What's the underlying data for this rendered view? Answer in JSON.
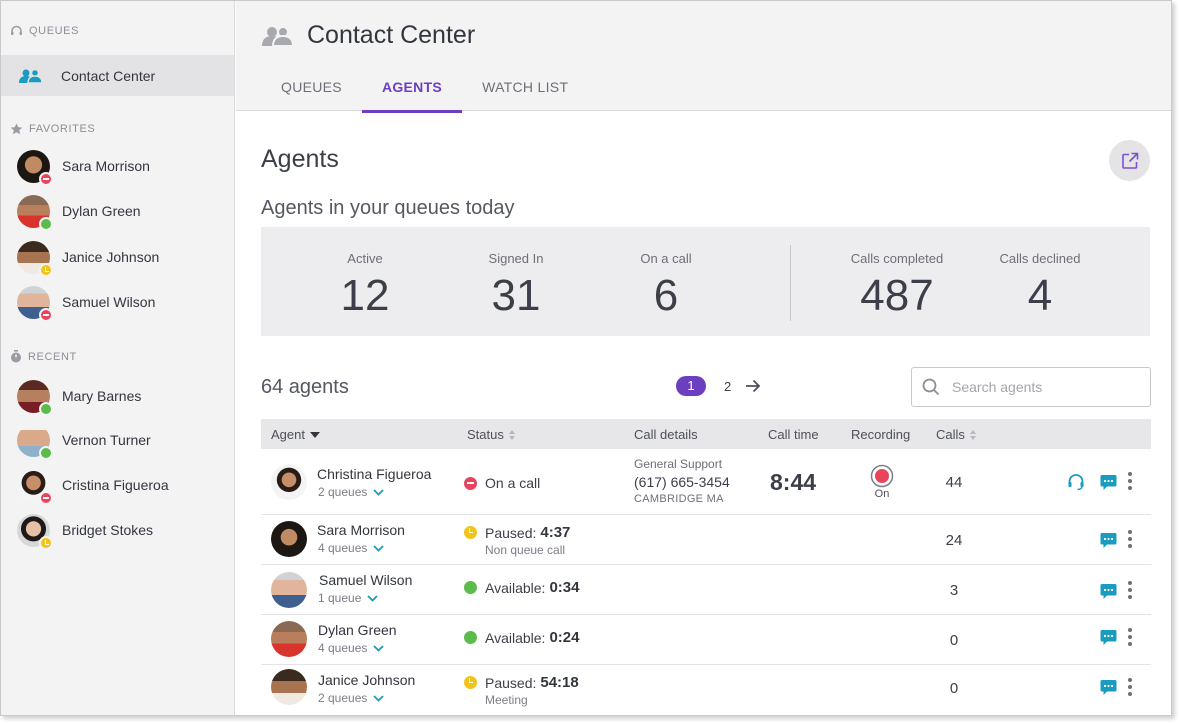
{
  "sidebar": {
    "queues_heading": "QUEUES",
    "queue_item": "Contact Center",
    "favorites_heading": "FAVORITES",
    "favorites": [
      {
        "name": "Sara Morrison",
        "status": "dnd"
      },
      {
        "name": "Dylan Green",
        "status": "available"
      },
      {
        "name": "Janice Johnson",
        "status": "away"
      },
      {
        "name": "Samuel Wilson",
        "status": "dnd"
      }
    ],
    "recent_heading": "RECENT",
    "recent": [
      {
        "name": "Mary Barnes",
        "status": "available"
      },
      {
        "name": "Vernon Turner",
        "status": "available"
      },
      {
        "name": "Cristina Figueroa",
        "status": "dnd"
      },
      {
        "name": "Bridget Stokes",
        "status": "away"
      }
    ]
  },
  "header": {
    "title": "Contact Center",
    "tabs": [
      "QUEUES",
      "AGENTS",
      "WATCH LIST"
    ],
    "active_tab": "AGENTS"
  },
  "page": {
    "heading": "Agents",
    "subheading": "Agents in your queues today"
  },
  "stats": [
    {
      "label": "Active",
      "value": "12"
    },
    {
      "label": "Signed In",
      "value": "31"
    },
    {
      "label": "On a call",
      "value": "6"
    },
    {
      "label": "Calls completed",
      "value": "487"
    },
    {
      "label": "Calls declined",
      "value": "4"
    }
  ],
  "list": {
    "count_text": "64 agents",
    "pages": [
      "1",
      "2"
    ],
    "current_page": "1",
    "search_placeholder": "Search agents"
  },
  "table": {
    "columns": [
      "Agent",
      "Status",
      "Call details",
      "Call time",
      "Recording",
      "Calls"
    ],
    "rows": [
      {
        "name": "Christina Figueroa",
        "queues": "2 queues",
        "status": "dnd",
        "status_label": "On a call",
        "status_time": "",
        "status_sub": "",
        "call_queue": "General Support",
        "call_phone": "(617) 665-3454",
        "call_location": "CAMBRIDGE MA",
        "call_time": "8:44",
        "recording": "On",
        "calls": "44"
      },
      {
        "name": "Sara Morrison",
        "queues": "4 queues",
        "status": "away",
        "status_label": "Paused:",
        "status_time": "4:37",
        "status_sub": "Non queue call",
        "calls": "24"
      },
      {
        "name": "Samuel Wilson",
        "queues": "1 queue",
        "status": "available",
        "status_label": "Available:",
        "status_time": "0:34",
        "status_sub": "",
        "calls": "3"
      },
      {
        "name": "Dylan Green",
        "queues": "4 queues",
        "status": "available",
        "status_label": "Available:",
        "status_time": "0:24",
        "status_sub": "",
        "calls": "0"
      },
      {
        "name": "Janice Johnson",
        "queues": "2 queues",
        "status": "away",
        "status_label": "Paused:",
        "status_time": "54:18",
        "status_sub": "Meeting",
        "calls": "0"
      }
    ]
  },
  "colors": {
    "accent": "#6b3fc0",
    "teal": "#1a9bbf",
    "dnd": "#e8455c",
    "available": "#5cbb4a",
    "away": "#f2c318"
  },
  "icons": [
    "headset-icon",
    "people-icon",
    "star-icon",
    "timer-icon",
    "external-link-icon",
    "search-icon",
    "arrow-right-icon",
    "chevron-down-icon",
    "chat-icon",
    "more-icon",
    "record-icon"
  ]
}
